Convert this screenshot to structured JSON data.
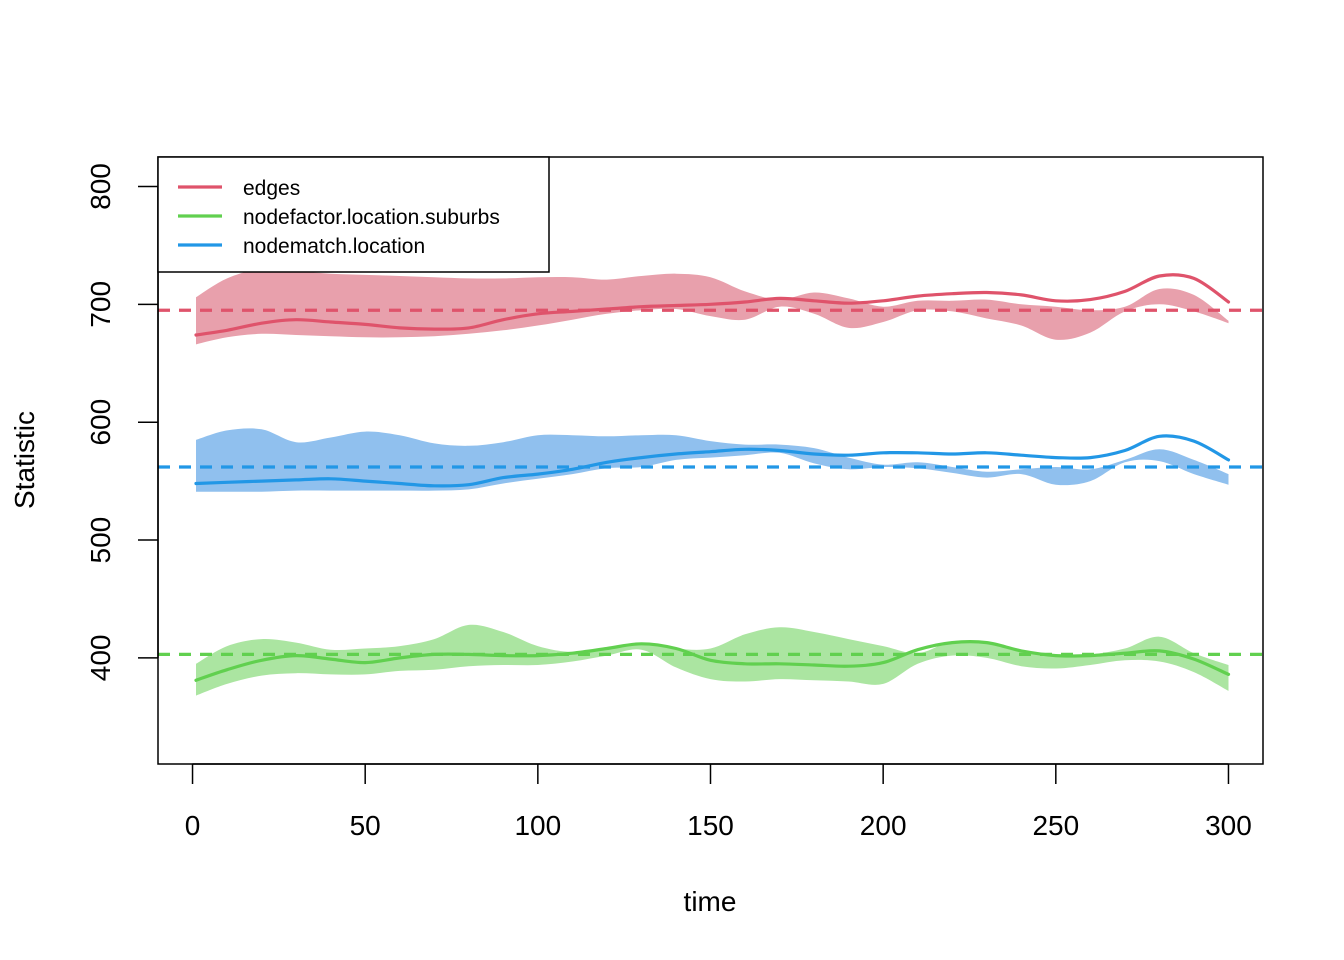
{
  "chart_data": {
    "type": "line",
    "xlabel": "time",
    "ylabel": "Statistic",
    "xlim": [
      -10,
      310
    ],
    "ylim": [
      310,
      825
    ],
    "x_ticks": [
      0,
      50,
      100,
      150,
      200,
      250,
      300
    ],
    "y_ticks": [
      400,
      500,
      600,
      700,
      800
    ],
    "legend_position": "top-left",
    "series": [
      {
        "name": "edges",
        "color": "#DF536B",
        "band_color": "#E8A0AC",
        "target": 695,
        "x": [
          1,
          10,
          20,
          30,
          40,
          50,
          60,
          70,
          80,
          90,
          100,
          110,
          120,
          130,
          140,
          150,
          160,
          170,
          180,
          190,
          200,
          210,
          220,
          230,
          240,
          250,
          260,
          270,
          280,
          290,
          300
        ],
        "mean": [
          674,
          678,
          684,
          687,
          685,
          683,
          680,
          679,
          680,
          687,
          692,
          694,
          696,
          698,
          699,
          700,
          702,
          705,
          703,
          701,
          703,
          707,
          709,
          710,
          708,
          703,
          704,
          711,
          724,
          722,
          702
        ],
        "lower": [
          666,
          672,
          675,
          674,
          673,
          672,
          672,
          673,
          675,
          678,
          682,
          687,
          692,
          695,
          696,
          690,
          687,
          698,
          692,
          680,
          685,
          695,
          694,
          688,
          682,
          670,
          676,
          694,
          700,
          694,
          684
        ],
        "upper": [
          706,
          722,
          730,
          728,
          726,
          725,
          724,
          723,
          722,
          722,
          723,
          723,
          721,
          724,
          726,
          723,
          711,
          704,
          710,
          705,
          698,
          703,
          703,
          704,
          700,
          698,
          695,
          698,
          713,
          708,
          686
        ]
      },
      {
        "name": "nodefactor.location.suburbs",
        "color": "#61D04F",
        "band_color": "#ABE5A1",
        "target": 403,
        "x": [
          1,
          10,
          20,
          30,
          40,
          50,
          60,
          70,
          80,
          90,
          100,
          110,
          120,
          130,
          140,
          150,
          160,
          170,
          180,
          190,
          200,
          210,
          220,
          230,
          240,
          250,
          260,
          270,
          280,
          290,
          300
        ],
        "mean": [
          381,
          390,
          398,
          402,
          399,
          396,
          400,
          403,
          403,
          402,
          402,
          404,
          408,
          412,
          408,
          398,
          395,
          395,
          394,
          393,
          396,
          407,
          413,
          413,
          406,
          402,
          402,
          404,
          406,
          399,
          386
        ],
        "lower": [
          368,
          378,
          385,
          387,
          386,
          386,
          389,
          390,
          393,
          394,
          394,
          397,
          402,
          407,
          392,
          382,
          380,
          382,
          381,
          380,
          378,
          395,
          402,
          400,
          393,
          391,
          394,
          398,
          397,
          388,
          372
        ],
        "upper": [
          395,
          410,
          416,
          413,
          407,
          408,
          410,
          416,
          428,
          422,
          410,
          405,
          408,
          413,
          408,
          408,
          420,
          426,
          422,
          416,
          410,
          404,
          414,
          413,
          407,
          402,
          403,
          408,
          418,
          404,
          394
        ]
      },
      {
        "name": "nodematch.location",
        "color": "#2297E6",
        "band_color": "#90C0EE",
        "target": 562,
        "x": [
          1,
          10,
          20,
          30,
          40,
          50,
          60,
          70,
          80,
          90,
          100,
          110,
          120,
          130,
          140,
          150,
          160,
          170,
          180,
          190,
          200,
          210,
          220,
          230,
          240,
          250,
          260,
          270,
          280,
          290,
          300
        ],
        "mean": [
          548,
          549,
          550,
          551,
          552,
          550,
          548,
          546,
          547,
          553,
          556,
          560,
          566,
          570,
          573,
          575,
          577,
          576,
          573,
          572,
          574,
          574,
          573,
          574,
          572,
          570,
          570,
          576,
          588,
          584,
          568
        ],
        "lower": [
          541,
          541,
          541,
          542,
          542,
          542,
          542,
          542,
          543,
          548,
          552,
          556,
          561,
          562,
          568,
          570,
          572,
          574,
          565,
          560,
          562,
          561,
          557,
          553,
          556,
          547,
          550,
          566,
          567,
          556,
          547
        ],
        "upper": [
          585,
          593,
          594,
          583,
          587,
          592,
          589,
          582,
          580,
          583,
          589,
          589,
          588,
          589,
          589,
          584,
          581,
          581,
          578,
          570,
          564,
          566,
          562,
          558,
          560,
          562,
          560,
          568,
          577,
          568,
          556
        ]
      }
    ]
  }
}
